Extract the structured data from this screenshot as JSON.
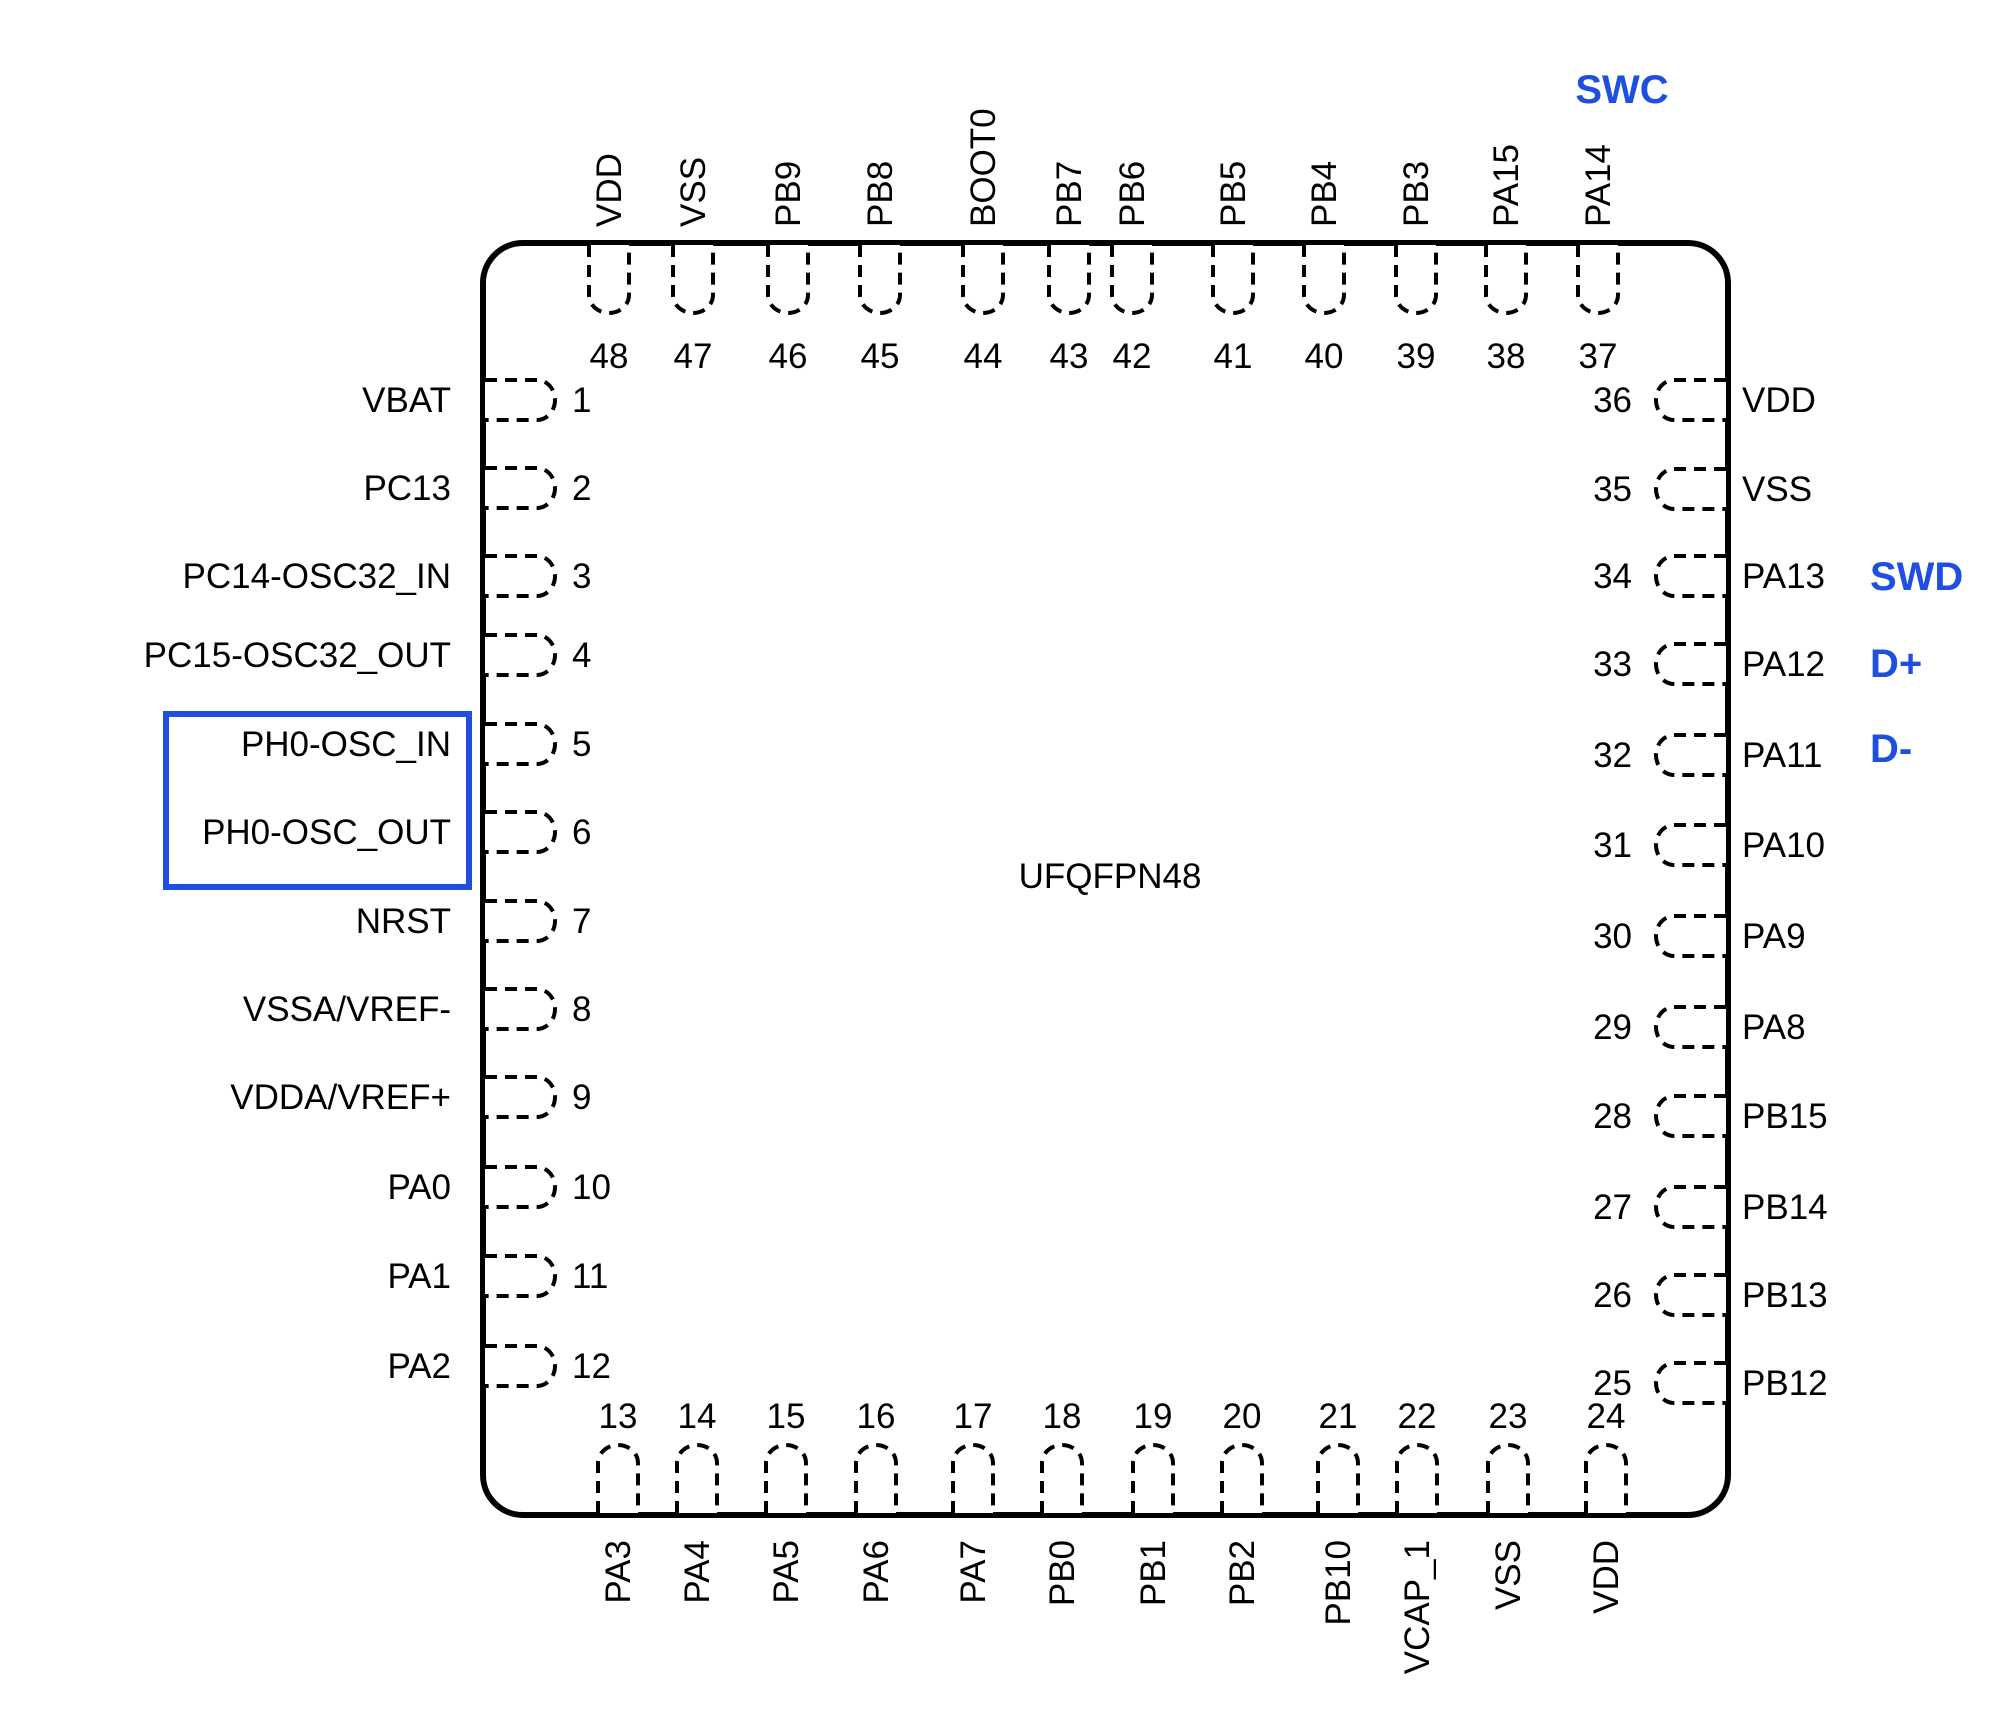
{
  "package": {
    "name": "UFQFPN48"
  },
  "pins": {
    "left": [
      {
        "num": "1",
        "name": "VBAT"
      },
      {
        "num": "2",
        "name": "PC13"
      },
      {
        "num": "3",
        "name": "PC14-OSC32_IN"
      },
      {
        "num": "4",
        "name": "PC15-OSC32_OUT"
      },
      {
        "num": "5",
        "name": "PH0-OSC_IN"
      },
      {
        "num": "6",
        "name": "PH0-OSC_OUT"
      },
      {
        "num": "7",
        "name": "NRST"
      },
      {
        "num": "8",
        "name": "VSSA/VREF-"
      },
      {
        "num": "9",
        "name": "VDDA/VREF+"
      },
      {
        "num": "10",
        "name": "PA0"
      },
      {
        "num": "11",
        "name": "PA1"
      },
      {
        "num": "12",
        "name": "PA2"
      }
    ],
    "bottom": [
      {
        "num": "13",
        "name": "PA3"
      },
      {
        "num": "14",
        "name": "PA4"
      },
      {
        "num": "15",
        "name": "PA5"
      },
      {
        "num": "16",
        "name": "PA6"
      },
      {
        "num": "17",
        "name": "PA7"
      },
      {
        "num": "18",
        "name": "PB0"
      },
      {
        "num": "19",
        "name": "PB1"
      },
      {
        "num": "20",
        "name": "PB2"
      },
      {
        "num": "21",
        "name": "PB10"
      },
      {
        "num": "22",
        "name": "VCAP_1"
      },
      {
        "num": "23",
        "name": "VSS"
      },
      {
        "num": "24",
        "name": "VDD"
      }
    ],
    "right": [
      {
        "num": "25",
        "name": "PB12"
      },
      {
        "num": "26",
        "name": "PB13"
      },
      {
        "num": "27",
        "name": "PB14"
      },
      {
        "num": "28",
        "name": "PB15"
      },
      {
        "num": "29",
        "name": "PA8"
      },
      {
        "num": "30",
        "name": "PA9"
      },
      {
        "num": "31",
        "name": "PA10"
      },
      {
        "num": "32",
        "name": "PA11"
      },
      {
        "num": "33",
        "name": "PA12"
      },
      {
        "num": "34",
        "name": "PA13"
      },
      {
        "num": "35",
        "name": "VSS"
      },
      {
        "num": "36",
        "name": "VDD"
      }
    ],
    "top": [
      {
        "num": "37",
        "name": "PA14"
      },
      {
        "num": "38",
        "name": "PA15"
      },
      {
        "num": "39",
        "name": "PB3"
      },
      {
        "num": "40",
        "name": "PB4"
      },
      {
        "num": "41",
        "name": "PB5"
      },
      {
        "num": "42",
        "name": "PB6"
      },
      {
        "num": "43",
        "name": "PB7"
      },
      {
        "num": "44",
        "name": "BOOT0"
      },
      {
        "num": "45",
        "name": "PB8"
      },
      {
        "num": "46",
        "name": "PB9"
      },
      {
        "num": "47",
        "name": "VSS"
      },
      {
        "num": "48",
        "name": "VDD"
      }
    ]
  },
  "annotations": [
    {
      "pin": "37",
      "text": "SWC"
    },
    {
      "pin": "34",
      "text": "SWD"
    },
    {
      "pin": "33",
      "text": "D+"
    },
    {
      "pin": "32",
      "text": "D-"
    }
  ],
  "highlight": {
    "pins": [
      "5",
      "6"
    ]
  },
  "colors": {
    "annotation": "#1f4fe0",
    "highlight_box": "#1f4fe0",
    "outline": "#000000"
  }
}
